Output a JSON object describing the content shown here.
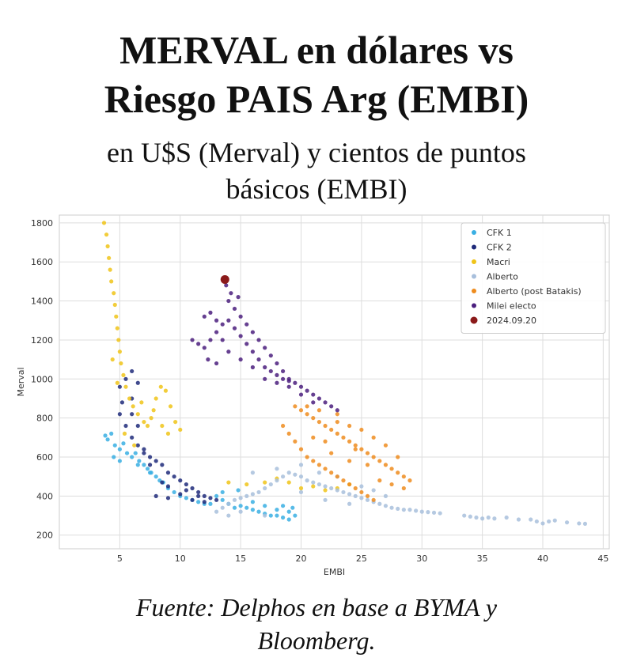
{
  "header": {
    "title_line1": "MERVAL en dólares vs",
    "title_line2": "Riesgo PAIS Arg (EMBI)",
    "subtitle_line1": "en U$S (Merval) y cientos de puntos",
    "subtitle_line2": "básicos (EMBI)"
  },
  "footer": {
    "source_line1": "Fuente: Delphos en base a BYMA y",
    "source_line2": "Bloomberg."
  },
  "chart_data": {
    "type": "scatter",
    "xlabel": "EMBI",
    "ylabel": "Merval",
    "xlim": [
      0,
      45.5
    ],
    "ylim": [
      130,
      1840
    ],
    "xticks": [
      5,
      10,
      15,
      20,
      25,
      30,
      35,
      40,
      45
    ],
    "yticks": [
      200,
      400,
      600,
      800,
      1000,
      1200,
      1400,
      1600,
      1800
    ],
    "grid": true,
    "legend_position": "top-right",
    "series": [
      {
        "name": "CFK 1",
        "color": "#3aafe3",
        "points": [
          [
            3.8,
            710
          ],
          [
            4,
            690
          ],
          [
            4.3,
            720
          ],
          [
            4.6,
            660
          ],
          [
            5,
            640
          ],
          [
            5.3,
            670
          ],
          [
            5.6,
            620
          ],
          [
            6,
            600
          ],
          [
            6.3,
            620
          ],
          [
            6.6,
            580
          ],
          [
            7,
            560
          ],
          [
            7.3,
            540
          ],
          [
            7.6,
            520
          ],
          [
            8,
            500
          ],
          [
            8.3,
            480
          ],
          [
            8.6,
            470
          ],
          [
            9,
            440
          ],
          [
            9.5,
            420
          ],
          [
            10,
            400
          ],
          [
            10.5,
            390
          ],
          [
            11,
            380
          ],
          [
            11.5,
            370
          ],
          [
            12,
            360
          ],
          [
            12.5,
            360
          ],
          [
            13,
            400
          ],
          [
            13.5,
            380
          ],
          [
            14,
            360
          ],
          [
            14.5,
            340
          ],
          [
            15,
            350
          ],
          [
            15.5,
            340
          ],
          [
            16,
            330
          ],
          [
            16.5,
            320
          ],
          [
            17,
            310
          ],
          [
            17.5,
            300
          ],
          [
            18,
            300
          ],
          [
            18.5,
            290
          ],
          [
            19,
            280
          ],
          [
            19.5,
            300
          ],
          [
            16,
            370
          ],
          [
            17,
            350
          ],
          [
            18,
            330
          ],
          [
            19,
            320
          ],
          [
            13.5,
            420
          ],
          [
            14.8,
            430
          ],
          [
            4.5,
            600
          ],
          [
            5,
            580
          ],
          [
            6.5,
            560
          ],
          [
            7.5,
            520
          ],
          [
            18.5,
            350
          ],
          [
            19.3,
            340
          ]
        ]
      },
      {
        "name": "CFK 2",
        "color": "#1f2a7a",
        "points": [
          [
            5,
            960
          ],
          [
            5.5,
            1000
          ],
          [
            6,
            1040
          ],
          [
            6.5,
            980
          ],
          [
            5.2,
            880
          ],
          [
            6,
            900
          ],
          [
            5,
            820
          ],
          [
            5.5,
            760
          ],
          [
            6,
            700
          ],
          [
            6.5,
            660
          ],
          [
            7,
            640
          ],
          [
            7.5,
            600
          ],
          [
            8,
            580
          ],
          [
            8.5,
            560
          ],
          [
            9,
            520
          ],
          [
            9.5,
            500
          ],
          [
            10,
            480
          ],
          [
            10.5,
            460
          ],
          [
            11,
            440
          ],
          [
            11.5,
            420
          ],
          [
            12,
            400
          ],
          [
            12.5,
            390
          ],
          [
            13,
            380
          ],
          [
            8,
            400
          ],
          [
            9,
            390
          ],
          [
            10,
            410
          ],
          [
            11,
            380
          ],
          [
            12,
            370
          ],
          [
            7,
            620
          ],
          [
            6.5,
            760
          ],
          [
            6,
            820
          ],
          [
            7.5,
            560
          ],
          [
            8.5,
            470
          ],
          [
            9,
            450
          ],
          [
            10.5,
            430
          ],
          [
            11.5,
            400
          ]
        ]
      },
      {
        "name": "Macri",
        "color": "#f0c419",
        "points": [
          [
            3.7,
            1800
          ],
          [
            3.9,
            1740
          ],
          [
            4,
            1680
          ],
          [
            4.1,
            1620
          ],
          [
            4.2,
            1560
          ],
          [
            4.3,
            1500
          ],
          [
            4.5,
            1440
          ],
          [
            4.6,
            1380
          ],
          [
            4.7,
            1320
          ],
          [
            4.8,
            1260
          ],
          [
            4.9,
            1200
          ],
          [
            5,
            1140
          ],
          [
            5.1,
            1080
          ],
          [
            5.3,
            1020
          ],
          [
            5.5,
            960
          ],
          [
            5.8,
            900
          ],
          [
            6.1,
            860
          ],
          [
            6.5,
            820
          ],
          [
            7,
            780
          ],
          [
            7.3,
            760
          ],
          [
            7.6,
            800
          ],
          [
            8,
            900
          ],
          [
            8.4,
            960
          ],
          [
            8.8,
            940
          ],
          [
            9.2,
            860
          ],
          [
            9.6,
            780
          ],
          [
            10,
            740
          ],
          [
            5.4,
            720
          ],
          [
            6.2,
            660
          ],
          [
            6.8,
            880
          ],
          [
            7.8,
            840
          ],
          [
            8.5,
            760
          ],
          [
            9,
            720
          ],
          [
            4.4,
            1100
          ],
          [
            4.8,
            980
          ],
          [
            14,
            470
          ],
          [
            17,
            470
          ],
          [
            20,
            440
          ],
          [
            22,
            430
          ],
          [
            24,
            460
          ],
          [
            21,
            450
          ],
          [
            23,
            440
          ],
          [
            19,
            470
          ],
          [
            15.5,
            460
          ],
          [
            18,
            490
          ]
        ]
      },
      {
        "name": "Alberto",
        "color": "#a8bfdc",
        "points": [
          [
            13,
            320
          ],
          [
            13.5,
            340
          ],
          [
            14,
            360
          ],
          [
            14.5,
            380
          ],
          [
            15,
            390
          ],
          [
            15.5,
            400
          ],
          [
            16,
            410
          ],
          [
            16.5,
            420
          ],
          [
            17,
            440
          ],
          [
            17.5,
            460
          ],
          [
            18,
            480
          ],
          [
            18.5,
            500
          ],
          [
            19,
            520
          ],
          [
            19.5,
            510
          ],
          [
            20,
            500
          ],
          [
            20.5,
            480
          ],
          [
            21,
            470
          ],
          [
            21.5,
            460
          ],
          [
            22,
            450
          ],
          [
            22.5,
            440
          ],
          [
            23,
            430
          ],
          [
            23.5,
            420
          ],
          [
            24,
            410
          ],
          [
            24.5,
            400
          ],
          [
            25,
            390
          ],
          [
            25.5,
            380
          ],
          [
            26,
            370
          ],
          [
            26.5,
            360
          ],
          [
            27,
            350
          ],
          [
            27.5,
            340
          ],
          [
            28,
            335
          ],
          [
            28.5,
            330
          ],
          [
            29,
            330
          ],
          [
            29.5,
            325
          ],
          [
            30,
            320
          ],
          [
            30.5,
            318
          ],
          [
            31,
            315
          ],
          [
            31.5,
            312
          ],
          [
            33.5,
            300
          ],
          [
            34,
            295
          ],
          [
            34.5,
            290
          ],
          [
            35,
            285
          ],
          [
            35.5,
            290
          ],
          [
            36,
            285
          ],
          [
            37,
            290
          ],
          [
            38,
            280
          ],
          [
            39,
            280
          ],
          [
            39.5,
            270
          ],
          [
            40,
            260
          ],
          [
            40.5,
            270
          ],
          [
            41,
            275
          ],
          [
            42,
            265
          ],
          [
            43,
            260
          ],
          [
            43.5,
            258
          ],
          [
            16,
            520
          ],
          [
            18,
            540
          ],
          [
            20,
            560
          ],
          [
            21.5,
            520
          ],
          [
            23,
            500
          ],
          [
            25,
            450
          ],
          [
            26,
            430
          ],
          [
            27,
            400
          ],
          [
            15,
            320
          ],
          [
            17,
            300
          ],
          [
            14,
            300
          ],
          [
            20,
            420
          ],
          [
            22,
            380
          ],
          [
            24,
            360
          ]
        ]
      },
      {
        "name": "Alberto (post Batakis)",
        "color": "#ee8c1e",
        "points": [
          [
            19.5,
            860
          ],
          [
            20,
            840
          ],
          [
            20.5,
            820
          ],
          [
            21,
            800
          ],
          [
            21.5,
            780
          ],
          [
            22,
            760
          ],
          [
            22.5,
            740
          ],
          [
            23,
            720
          ],
          [
            23.5,
            700
          ],
          [
            24,
            680
          ],
          [
            24.5,
            660
          ],
          [
            25,
            640
          ],
          [
            25.5,
            620
          ],
          [
            26,
            600
          ],
          [
            26.5,
            580
          ],
          [
            27,
            560
          ],
          [
            27.5,
            540
          ],
          [
            28,
            520
          ],
          [
            28.5,
            500
          ],
          [
            29,
            480
          ],
          [
            18.5,
            760
          ],
          [
            19,
            720
          ],
          [
            19.5,
            680
          ],
          [
            20,
            640
          ],
          [
            20.5,
            600
          ],
          [
            21,
            580
          ],
          [
            21.5,
            560
          ],
          [
            22,
            540
          ],
          [
            22.5,
            520
          ],
          [
            23,
            500
          ],
          [
            23.5,
            480
          ],
          [
            24,
            460
          ],
          [
            24.5,
            440
          ],
          [
            25,
            420
          ],
          [
            25.5,
            400
          ],
          [
            26,
            380
          ],
          [
            21,
            700
          ],
          [
            22,
            680
          ],
          [
            23,
            780
          ],
          [
            24,
            760
          ],
          [
            25,
            740
          ],
          [
            26,
            700
          ],
          [
            27,
            660
          ],
          [
            28,
            600
          ],
          [
            20.5,
            860
          ],
          [
            21.5,
            840
          ],
          [
            23,
            820
          ],
          [
            24.5,
            640
          ],
          [
            25.5,
            560
          ],
          [
            26.5,
            480
          ],
          [
            27.5,
            460
          ],
          [
            28.5,
            440
          ],
          [
            22.5,
            620
          ],
          [
            24,
            580
          ]
        ]
      },
      {
        "name": "Milei electo",
        "color": "#4b1f7e",
        "points": [
          [
            11,
            1200
          ],
          [
            11.5,
            1180
          ],
          [
            12,
            1160
          ],
          [
            12.5,
            1200
          ],
          [
            13,
            1240
          ],
          [
            13.5,
            1200
          ],
          [
            12,
            1320
          ],
          [
            12.5,
            1340
          ],
          [
            13,
            1300
          ],
          [
            13.5,
            1280
          ],
          [
            14,
            1300
          ],
          [
            14.5,
            1260
          ],
          [
            15,
            1220
          ],
          [
            15.5,
            1180
          ],
          [
            16,
            1140
          ],
          [
            16.5,
            1100
          ],
          [
            17,
            1060
          ],
          [
            17.5,
            1040
          ],
          [
            18,
            1020
          ],
          [
            18.5,
            1000
          ],
          [
            19,
            990
          ],
          [
            19.5,
            980
          ],
          [
            20,
            960
          ],
          [
            20.5,
            940
          ],
          [
            21,
            920
          ],
          [
            21.5,
            900
          ],
          [
            22,
            880
          ],
          [
            22.5,
            860
          ],
          [
            23,
            840
          ],
          [
            14,
            1400
          ],
          [
            14.5,
            1360
          ],
          [
            15,
            1320
          ],
          [
            15.5,
            1280
          ],
          [
            16,
            1240
          ],
          [
            16.5,
            1200
          ],
          [
            17,
            1160
          ],
          [
            17.5,
            1120
          ],
          [
            18,
            1080
          ],
          [
            18.5,
            1040
          ],
          [
            19,
            1000
          ],
          [
            13.8,
            1480
          ],
          [
            14.2,
            1440
          ],
          [
            14.8,
            1420
          ],
          [
            12.3,
            1100
          ],
          [
            13,
            1080
          ],
          [
            14,
            1140
          ],
          [
            15,
            1100
          ],
          [
            16,
            1060
          ],
          [
            17,
            1000
          ],
          [
            18,
            980
          ],
          [
            19,
            960
          ],
          [
            20,
            920
          ],
          [
            21,
            880
          ]
        ]
      },
      {
        "name": "2024.09.20",
        "color": "#8b1a1a",
        "points": [
          [
            13.7,
            1510
          ]
        ]
      }
    ]
  }
}
